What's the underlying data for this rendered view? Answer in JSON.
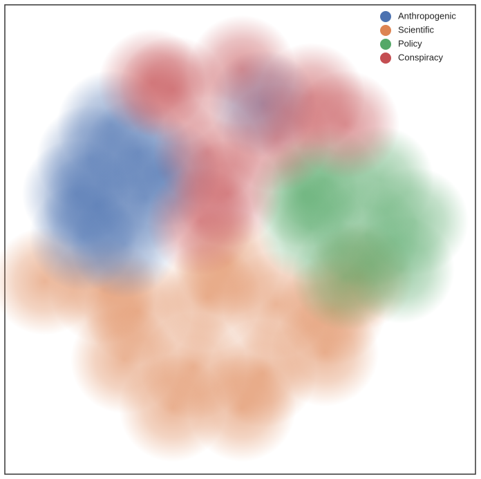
{
  "chart_data": {
    "type": "scatter",
    "legend": "upper right",
    "xlim": [
      0,
      100
    ],
    "ylim": [
      0,
      100
    ],
    "series": [
      {
        "name": "Scientific",
        "color": "#dd8452",
        "x": [
          28.3,
          43.0,
          57.7,
          69.5,
          25.4,
          40.1,
          54.8,
          68.0,
          35.7,
          50.4,
          47.4,
          21.0,
          75.3,
          8.5
        ],
        "values": [
          34.8,
          37.7,
          36.2,
          34.8,
          24.4,
          23.0,
          21.5,
          25.9,
          14.1,
          14.1,
          45.1,
          39.2,
          42.1,
          41.1
        ]
      },
      {
        "name": "Anthropogenic",
        "color": "#4c72b0",
        "x": [
          18.1,
          28.3,
          19.5,
          29.8,
          16.6,
          25.4,
          34.2,
          54.8,
          22.5,
          15.1
        ],
        "values": [
          67.2,
          68.6,
          57.4,
          58.9,
          50.5,
          49.0,
          64.2,
          78.9,
          74.5,
          59.8
        ]
      },
      {
        "name": "Policy",
        "color": "#55a868",
        "x": [
          68.0,
          79.7,
          87.1,
          65.1,
          76.8,
          84.1,
          72.4,
          63.6
        ],
        "values": [
          62.7,
          62.7,
          53.9,
          52.4,
          51.0,
          43.6,
          42.1,
          59.8
        ]
      },
      {
        "name": "Conspiracy",
        "color": "#c44e52",
        "x": [
          35.7,
          50.4,
          65.1,
          72.4,
          43.0,
          47.4,
          57.7,
          41.6,
          31.3
        ],
        "values": [
          81.9,
          86.3,
          80.4,
          74.5,
          68.6,
          59.8,
          71.6,
          53.9,
          83.4
        ]
      }
    ],
    "legend_order": [
      "Anthropogenic",
      "Scientific",
      "Policy",
      "Conspiracy"
    ]
  }
}
